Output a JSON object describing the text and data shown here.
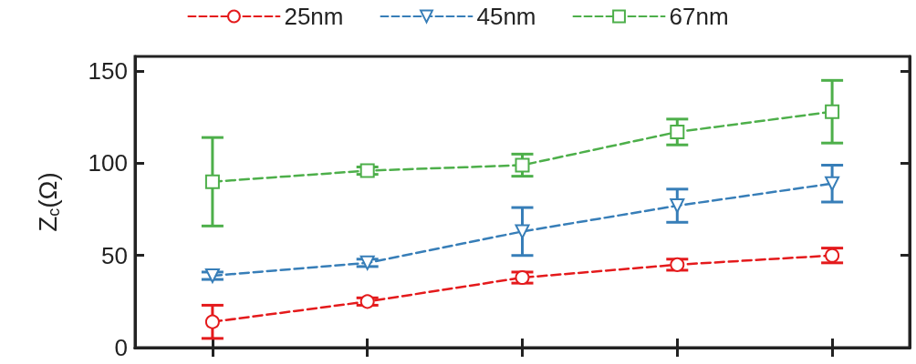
{
  "chart_data": {
    "type": "line",
    "ylabel": "Z$_{c}$(Ω)",
    "categories": [
      null,
      null,
      null,
      null,
      null
    ],
    "ylim": [
      0,
      158
    ],
    "yticks": [
      0,
      50,
      100,
      150
    ],
    "line_style": "dashed",
    "legend": "top",
    "grid": false,
    "series": [
      {
        "name": "25nm",
        "color": "#e41a1c",
        "marker": "circle",
        "values": [
          14,
          25,
          38,
          45,
          50
        ],
        "errors": [
          9,
          2,
          3,
          3,
          4
        ]
      },
      {
        "name": "45nm",
        "color": "#377eb8",
        "marker": "triangle",
        "values": [
          39,
          46,
          63,
          77,
          89
        ],
        "errors": [
          2,
          2,
          13,
          9,
          10
        ]
      },
      {
        "name": "67nm",
        "color": "#4daf4a",
        "marker": "square",
        "values": [
          90,
          96,
          99,
          117,
          128
        ],
        "errors": [
          24,
          2,
          6,
          7,
          17
        ]
      }
    ]
  }
}
